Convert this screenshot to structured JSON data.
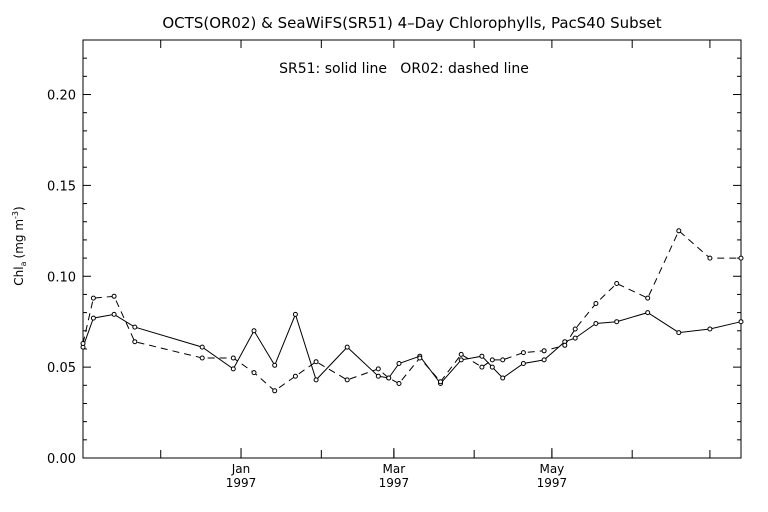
{
  "chart_data": {
    "type": "line",
    "title": "OCTS(OR02) & SeaWiFS(SR51) 4–Day Chlorophylls, PacS40 Subset",
    "annotation": "SR51: solid line   OR02: dashed line",
    "ylabel": "Chl",
    "ylabel_sub": "a",
    "ylabel_units": "(mg m",
    "ylabel_exp": "-3",
    "ylabel_close": ")",
    "ylim": [
      0.0,
      0.23
    ],
    "yticks": [
      "0.00",
      "0.05",
      "0.10",
      "0.15",
      "0.20"
    ],
    "xlim": [
      "1996-11-01",
      "1997-07-13"
    ],
    "xticks": [
      {
        "date": "1997-01-01",
        "label": "Jan",
        "year": "1997"
      },
      {
        "date": "1997-03-01",
        "label": "Mar",
        "year": "1997"
      },
      {
        "date": "1997-05-01",
        "label": "May",
        "year": "1997"
      }
    ],
    "grid": false,
    "series": [
      {
        "name": "SR51",
        "style": "solid",
        "points": [
          {
            "x": "1996-11-01",
            "y": 0.061
          },
          {
            "x": "1996-11-05",
            "y": 0.077
          },
          {
            "x": "1996-11-13",
            "y": 0.079
          },
          {
            "x": "1996-11-21",
            "y": 0.072
          },
          {
            "x": "1996-12-17",
            "y": 0.061
          },
          {
            "x": "1996-12-29",
            "y": 0.049
          },
          {
            "x": "1997-01-06",
            "y": 0.07
          },
          {
            "x": "1997-01-14",
            "y": 0.051
          },
          {
            "x": "1997-01-22",
            "y": 0.079
          },
          {
            "x": "1997-01-30",
            "y": 0.043
          },
          {
            "x": "1997-02-11",
            "y": 0.061
          },
          {
            "x": "1997-02-23",
            "y": 0.045
          },
          {
            "x": "1997-02-27",
            "y": 0.044
          },
          {
            "x": "1997-03-03",
            "y": 0.052
          },
          {
            "x": "1997-03-11",
            "y": 0.056
          },
          {
            "x": "1997-03-19",
            "y": 0.041
          },
          {
            "x": "1997-03-27",
            "y": 0.054
          },
          {
            "x": "1997-04-04",
            "y": 0.056
          },
          {
            "x": "1997-04-08",
            "y": 0.05
          },
          {
            "x": "1997-04-12",
            "y": 0.044
          },
          {
            "x": "1997-04-20",
            "y": 0.052
          },
          {
            "x": "1997-04-28",
            "y": 0.054
          },
          {
            "x": "1997-05-06",
            "y": 0.064
          },
          {
            "x": "1997-05-10",
            "y": 0.066
          },
          {
            "x": "1997-05-18",
            "y": 0.074
          },
          {
            "x": "1997-05-26",
            "y": 0.075
          },
          {
            "x": "1997-06-07",
            "y": 0.08
          },
          {
            "x": "1997-06-19",
            "y": 0.069
          },
          {
            "x": "1997-07-01",
            "y": 0.071
          },
          {
            "x": "1997-07-13",
            "y": 0.075
          }
        ]
      },
      {
        "name": "OR02",
        "style": "dashed",
        "points": [
          {
            "x": "1996-11-01",
            "y": 0.063
          },
          {
            "x": "1996-11-05",
            "y": 0.088
          },
          {
            "x": "1996-11-13",
            "y": 0.089
          },
          {
            "x": "1996-11-21",
            "y": 0.064
          },
          {
            "x": "1996-12-17",
            "y": 0.055
          },
          {
            "x": "1996-12-29",
            "y": 0.055
          },
          {
            "x": "1997-01-06",
            "y": 0.047
          },
          {
            "x": "1997-01-14",
            "y": 0.037
          },
          {
            "x": "1997-01-22",
            "y": 0.045
          },
          {
            "x": "1997-01-30",
            "y": 0.053
          },
          {
            "x": "1997-02-11",
            "y": 0.043
          },
          {
            "x": "1997-02-23",
            "y": 0.049
          },
          {
            "x": "1997-02-27",
            "y": 0.044
          },
          {
            "x": "1997-03-03",
            "y": 0.041
          },
          {
            "x": "1997-03-11",
            "y": 0.055
          },
          {
            "x": "1997-03-19",
            "y": 0.042
          },
          {
            "x": "1997-03-27",
            "y": 0.057
          },
          {
            "x": "1997-04-04",
            "y": 0.05
          },
          {
            "x": "1997-04-08",
            "y": 0.054
          },
          {
            "x": "1997-04-12",
            "y": 0.054
          },
          {
            "x": "1997-04-20",
            "y": 0.058
          },
          {
            "x": "1997-04-28",
            "y": 0.059
          },
          {
            "x": "1997-05-06",
            "y": 0.062
          },
          {
            "x": "1997-05-10",
            "y": 0.071
          },
          {
            "x": "1997-05-18",
            "y": 0.085
          },
          {
            "x": "1997-05-26",
            "y": 0.096
          },
          {
            "x": "1997-06-07",
            "y": 0.088
          },
          {
            "x": "1997-06-19",
            "y": 0.125
          },
          {
            "x": "1997-07-01",
            "y": 0.11
          },
          {
            "x": "1997-07-13",
            "y": 0.11
          }
        ]
      }
    ]
  }
}
